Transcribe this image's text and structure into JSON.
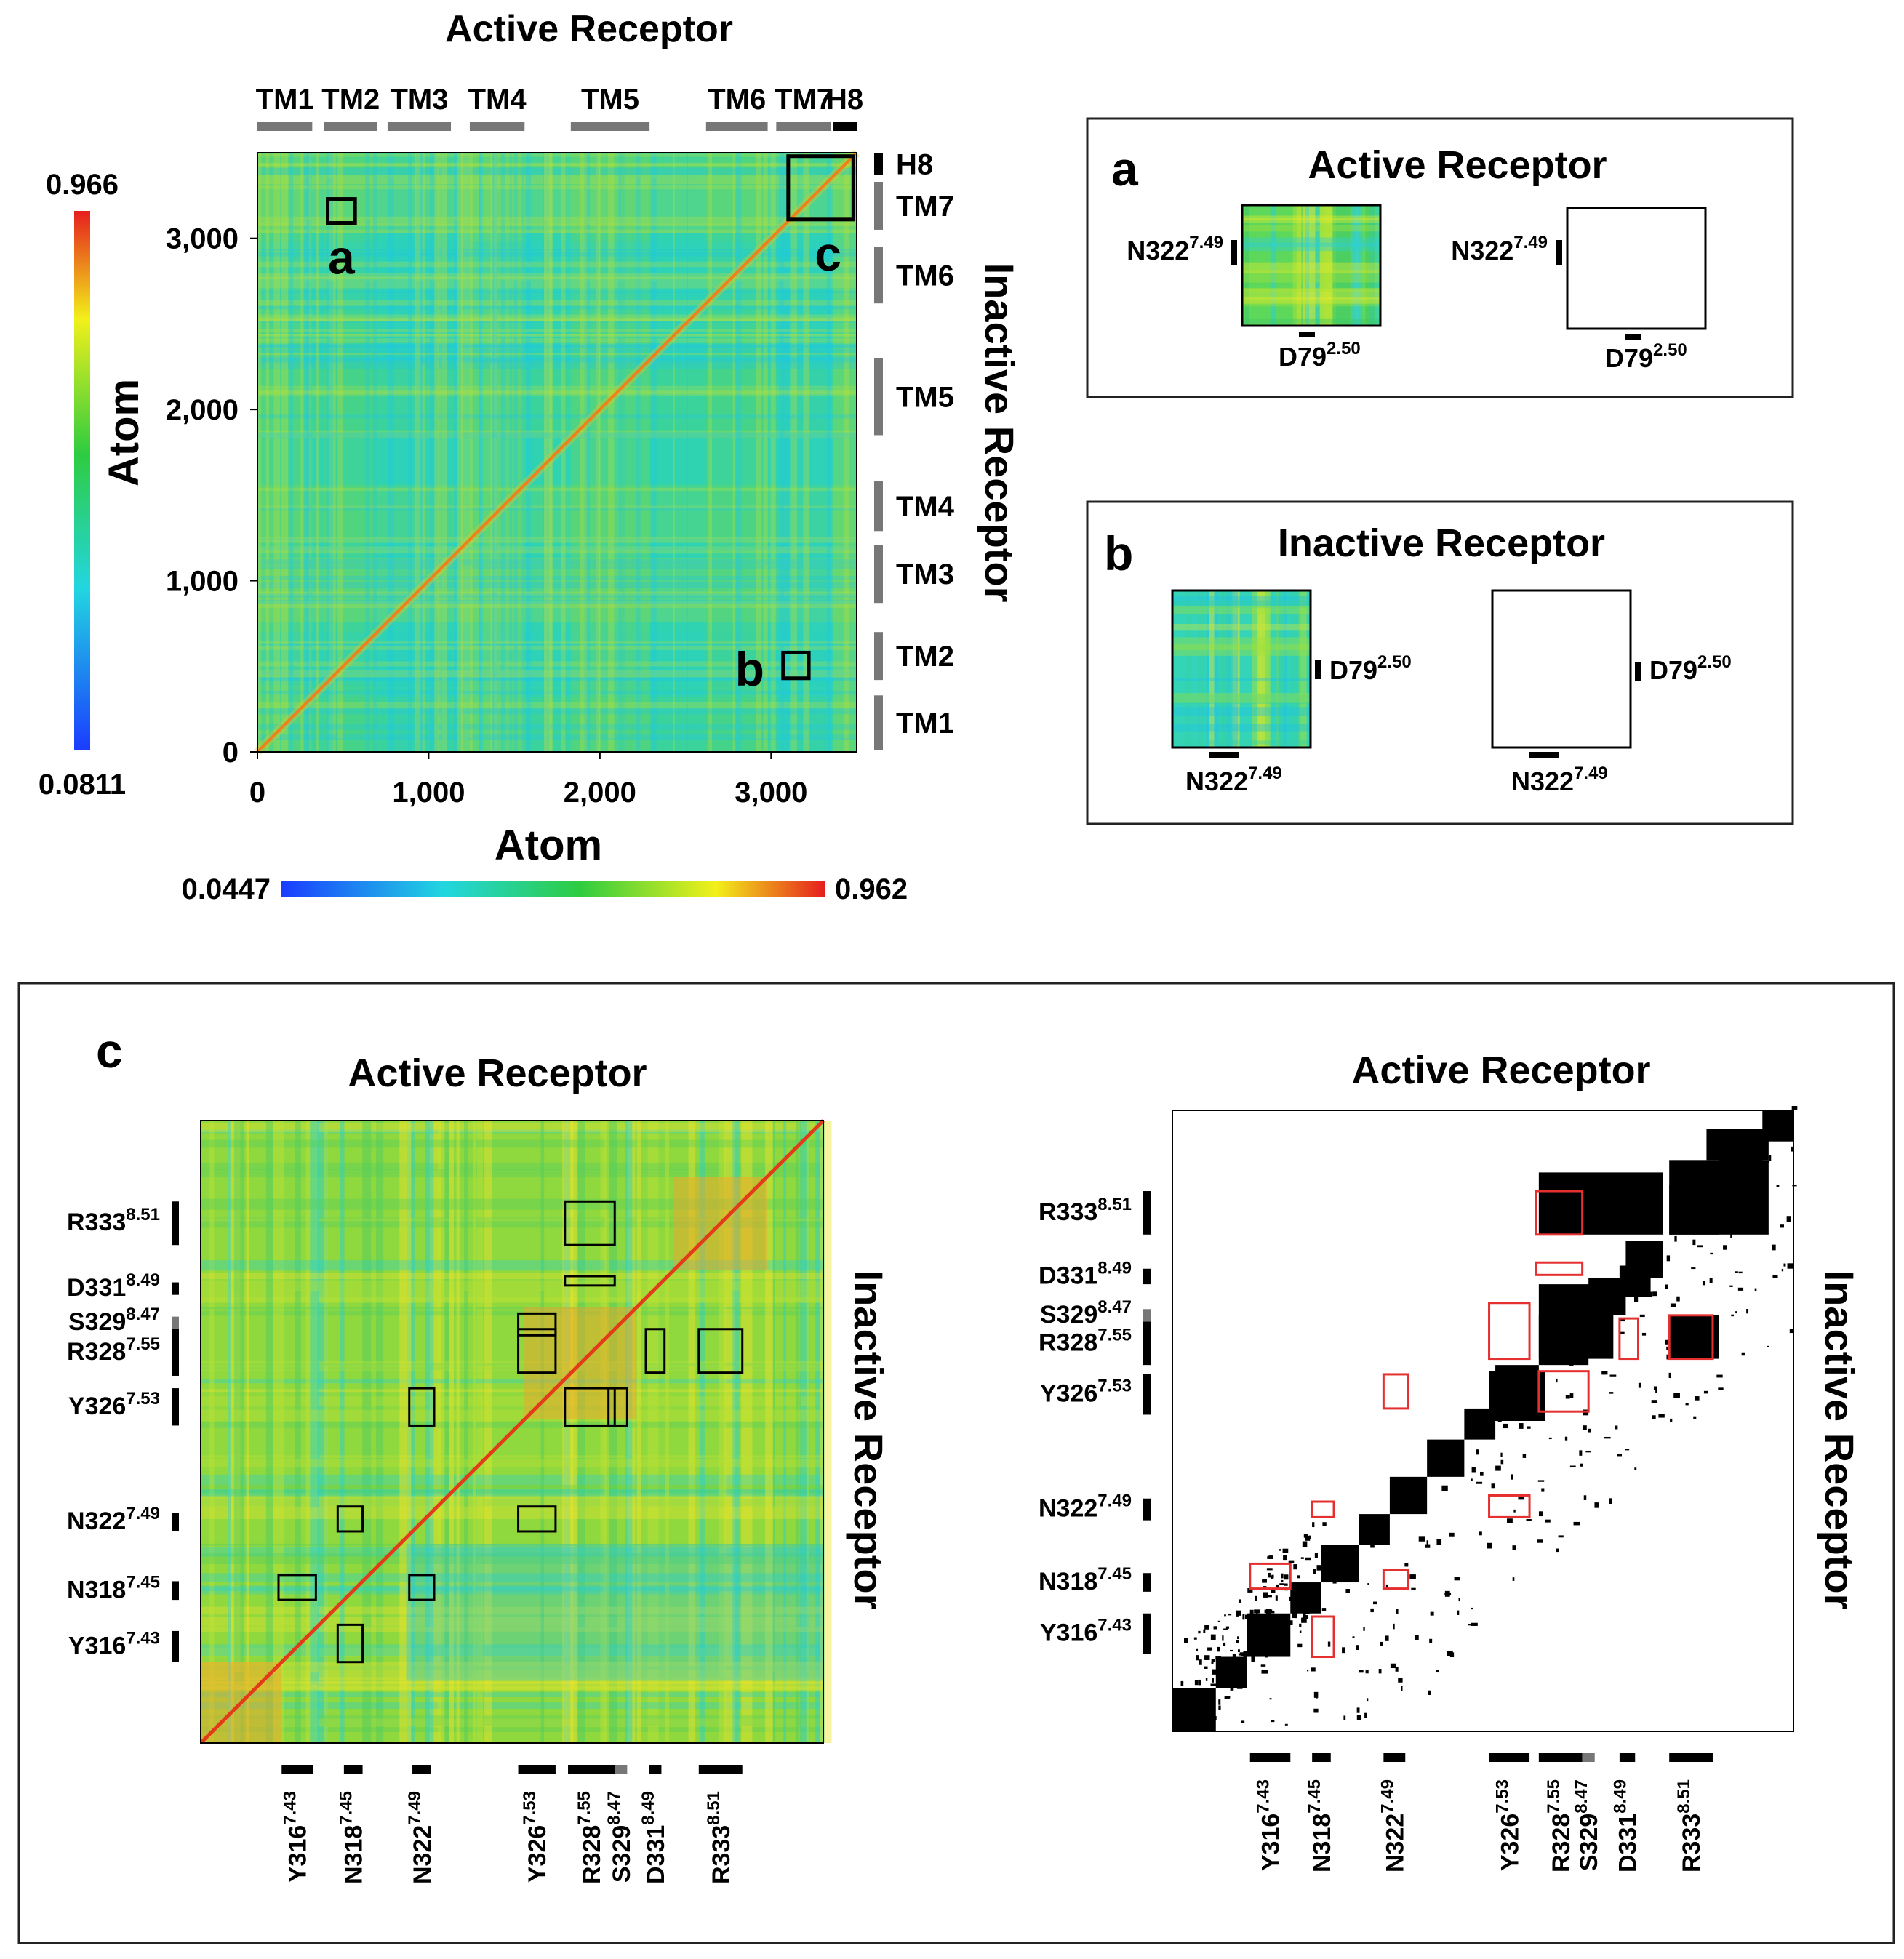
{
  "colors": {
    "map_low": "#1a3cff",
    "map_mid_low": "#22d6e0",
    "map_mid": "#2ecc40",
    "map_mid_high": "#f2f01a",
    "map_high": "#e61e1e",
    "frame": "#000000",
    "segment_grey": "#777777",
    "highlight_red": "#e53030"
  },
  "icons": [
    "segment-bar-icon",
    "residue-tick-icon",
    "zoom-box-icon"
  ],
  "chart_data": [
    {
      "panel": "main",
      "type": "heatmap",
      "title": "Active Receptor",
      "right_title": "Inactive Receptor",
      "xlabel": "Atom",
      "ylabel": "Atom",
      "xlim": [
        0,
        3500
      ],
      "ylim": [
        0,
        3500
      ],
      "xticks": [
        0,
        1000,
        2000,
        3000
      ],
      "xtick_labels": [
        "0",
        "1,000",
        "2,000",
        "3,000"
      ],
      "yticks": [
        0,
        1000,
        2000,
        3000
      ],
      "ytick_labels": [
        "0",
        "1,000",
        "2,000",
        "3,000"
      ],
      "top_segments": [
        {
          "label": "TM1",
          "start": 0,
          "end": 320
        },
        {
          "label": "TM2",
          "start": 390,
          "end": 700
        },
        {
          "label": "TM3",
          "start": 760,
          "end": 1130
        },
        {
          "label": "TM4",
          "start": 1240,
          "end": 1560
        },
        {
          "label": "TM5",
          "start": 1830,
          "end": 2290
        },
        {
          "label": "TM6",
          "start": 2620,
          "end": 2980
        },
        {
          "label": "TM7",
          "start": 3030,
          "end": 3350
        },
        {
          "label": "H8",
          "start": 3360,
          "end": 3500
        }
      ],
      "right_segments": [
        {
          "label": "H8",
          "start": 3370,
          "end": 3500
        },
        {
          "label": "TM7",
          "start": 3050,
          "end": 3330
        },
        {
          "label": "TM6",
          "start": 2620,
          "end": 2950
        },
        {
          "label": "TM5",
          "start": 1850,
          "end": 2300
        },
        {
          "label": "TM4",
          "start": 1290,
          "end": 1580
        },
        {
          "label": "TM3",
          "start": 870,
          "end": 1210
        },
        {
          "label": "TM2",
          "start": 420,
          "end": 700
        },
        {
          "label": "TM1",
          "start": 10,
          "end": 330
        }
      ],
      "colorbar_left": {
        "min": "0.0811",
        "max": "0.966",
        "min_value": 0.0811,
        "max_value": 0.966
      },
      "colorbar_bottom": {
        "min": "0.0447",
        "max": "0.962",
        "min_value": 0.0447,
        "max_value": 0.962
      },
      "zoom_boxes": [
        {
          "label": "a",
          "x": [
            410,
            570
          ],
          "y": [
            3090,
            3230
          ]
        },
        {
          "label": "b",
          "x": [
            3070,
            3220
          ],
          "y": [
            430,
            580
          ]
        },
        {
          "label": "c",
          "x": [
            3100,
            3480
          ],
          "y": [
            3110,
            3480
          ]
        }
      ]
    },
    {
      "panel": "a",
      "type": "heatmap",
      "label": "a",
      "title": "Active Receptor",
      "y_residue": {
        "name": "N322",
        "sup": "7.49"
      },
      "x_residue": {
        "name": "D79",
        "sup": "2.50"
      }
    },
    {
      "panel": "b",
      "type": "heatmap",
      "label": "b",
      "title": "Inactive Receptor",
      "y_residue": {
        "name": "D79",
        "sup": "2.50"
      },
      "x_residue": {
        "name": "N322",
        "sup": "7.49"
      }
    },
    {
      "panel": "c-left",
      "type": "heatmap",
      "label": "c",
      "title": "Active Receptor",
      "right_title": "Inactive Receptor",
      "residues": [
        {
          "name": "Y316",
          "sup": "7.43",
          "start": 0.13,
          "end": 0.18
        },
        {
          "name": "N318",
          "sup": "7.45",
          "start": 0.23,
          "end": 0.26
        },
        {
          "name": "N322",
          "sup": "7.49",
          "start": 0.34,
          "end": 0.37
        },
        {
          "name": "Y326",
          "sup": "7.53",
          "start": 0.51,
          "end": 0.57
        },
        {
          "name": "R328",
          "sup": "7.55",
          "start": 0.59,
          "end": 0.665
        },
        {
          "name": "S329",
          "sup": "8.47",
          "start": 0.665,
          "end": 0.685
        },
        {
          "name": "D331",
          "sup": "8.49",
          "start": 0.72,
          "end": 0.74
        },
        {
          "name": "R333",
          "sup": "8.51",
          "start": 0.8,
          "end": 0.87
        }
      ],
      "boxes": [
        {
          "x": [
            0.585,
            0.665
          ],
          "y": [
            0.8,
            0.87
          ]
        },
        {
          "x": [
            0.585,
            0.665
          ],
          "y": [
            0.735,
            0.75
          ]
        },
        {
          "x": [
            0.51,
            0.57
          ],
          "y": [
            0.655,
            0.69
          ]
        },
        {
          "x": [
            0.51,
            0.57
          ],
          "y": [
            0.595,
            0.665
          ]
        },
        {
          "x": [
            0.715,
            0.745
          ],
          "y": [
            0.595,
            0.665
          ]
        },
        {
          "x": [
            0.8,
            0.87
          ],
          "y": [
            0.595,
            0.665
          ]
        },
        {
          "x": [
            0.335,
            0.375
          ],
          "y": [
            0.51,
            0.57
          ]
        },
        {
          "x": [
            0.585,
            0.665
          ],
          "y": [
            0.51,
            0.57
          ]
        },
        {
          "x": [
            0.655,
            0.685
          ],
          "y": [
            0.51,
            0.57
          ]
        },
        {
          "x": [
            0.22,
            0.26
          ],
          "y": [
            0.34,
            0.38
          ]
        },
        {
          "x": [
            0.51,
            0.57
          ],
          "y": [
            0.34,
            0.38
          ]
        },
        {
          "x": [
            0.125,
            0.185
          ],
          "y": [
            0.23,
            0.27
          ]
        },
        {
          "x": [
            0.335,
            0.375
          ],
          "y": [
            0.23,
            0.27
          ]
        },
        {
          "x": [
            0.22,
            0.26
          ],
          "y": [
            0.13,
            0.19
          ]
        }
      ]
    },
    {
      "panel": "c-right",
      "type": "heatmap",
      "title": "Active Receptor",
      "right_title": "Inactive Receptor",
      "residues": [
        {
          "name": "Y316",
          "sup": "7.43",
          "start": 0.125,
          "end": 0.19
        },
        {
          "name": "N318",
          "sup": "7.45",
          "start": 0.225,
          "end": 0.255
        },
        {
          "name": "N322",
          "sup": "7.49",
          "start": 0.34,
          "end": 0.375
        },
        {
          "name": "Y326",
          "sup": "7.53",
          "start": 0.51,
          "end": 0.575
        },
        {
          "name": "R328",
          "sup": "7.55",
          "start": 0.59,
          "end": 0.66
        },
        {
          "name": "S329",
          "sup": "8.47",
          "start": 0.66,
          "end": 0.68
        },
        {
          "name": "D331",
          "sup": "8.49",
          "start": 0.72,
          "end": 0.745
        },
        {
          "name": "R333",
          "sup": "8.51",
          "start": 0.8,
          "end": 0.87
        }
      ],
      "red_boxes": [
        {
          "x": [
            0.585,
            0.66
          ],
          "y": [
            0.8,
            0.87
          ]
        },
        {
          "x": [
            0.585,
            0.66
          ],
          "y": [
            0.735,
            0.755
          ]
        },
        {
          "x": [
            0.51,
            0.575
          ],
          "y": [
            0.6,
            0.69
          ]
        },
        {
          "x": [
            0.72,
            0.75
          ],
          "y": [
            0.6,
            0.665
          ]
        },
        {
          "x": [
            0.8,
            0.87
          ],
          "y": [
            0.6,
            0.67
          ]
        },
        {
          "x": [
            0.34,
            0.38
          ],
          "y": [
            0.52,
            0.575
          ]
        },
        {
          "x": [
            0.59,
            0.67
          ],
          "y": [
            0.515,
            0.58
          ]
        },
        {
          "x": [
            0.225,
            0.26
          ],
          "y": [
            0.345,
            0.37
          ]
        },
        {
          "x": [
            0.51,
            0.575
          ],
          "y": [
            0.345,
            0.38
          ]
        },
        {
          "x": [
            0.125,
            0.19
          ],
          "y": [
            0.23,
            0.27
          ]
        },
        {
          "x": [
            0.34,
            0.38
          ],
          "y": [
            0.23,
            0.26
          ]
        },
        {
          "x": [
            0.225,
            0.26
          ],
          "y": [
            0.12,
            0.185
          ]
        }
      ]
    }
  ]
}
